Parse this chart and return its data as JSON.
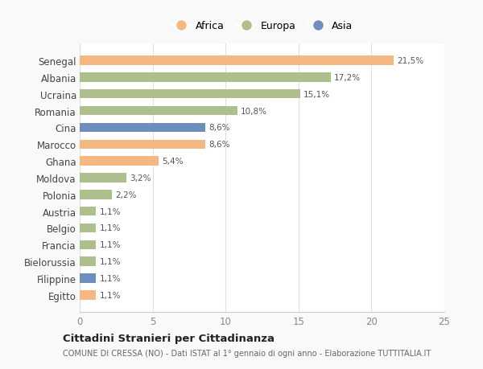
{
  "categories": [
    "Senegal",
    "Albania",
    "Ucraina",
    "Romania",
    "Cina",
    "Marocco",
    "Ghana",
    "Moldova",
    "Polonia",
    "Austria",
    "Belgio",
    "Francia",
    "Bielorussia",
    "Filippine",
    "Egitto"
  ],
  "values": [
    21.5,
    17.2,
    15.1,
    10.8,
    8.6,
    8.6,
    5.4,
    3.2,
    2.2,
    1.1,
    1.1,
    1.1,
    1.1,
    1.1,
    1.1
  ],
  "labels": [
    "21,5%",
    "17,2%",
    "15,1%",
    "10,8%",
    "8,6%",
    "8,6%",
    "5,4%",
    "3,2%",
    "2,2%",
    "1,1%",
    "1,1%",
    "1,1%",
    "1,1%",
    "1,1%",
    "1,1%"
  ],
  "colors": [
    "#F5B882",
    "#ADBF8C",
    "#ADBF8C",
    "#ADBF8C",
    "#6E8FBD",
    "#F5B882",
    "#F5B882",
    "#ADBF8C",
    "#ADBF8C",
    "#ADBF8C",
    "#ADBF8C",
    "#ADBF8C",
    "#ADBF8C",
    "#6E8FBD",
    "#F5B882"
  ],
  "continents": [
    "Africa",
    "Europa",
    "Asia"
  ],
  "legend_colors": [
    "#F5B882",
    "#ADBF8C",
    "#6E8FBD"
  ],
  "xlim": [
    0,
    25
  ],
  "xticks": [
    0,
    5,
    10,
    15,
    20,
    25
  ],
  "title": "Cittadini Stranieri per Cittadinanza",
  "subtitle": "COMUNE DI CRESSA (NO) - Dati ISTAT al 1° gennaio di ogni anno - Elaborazione TUTTITALIA.IT",
  "background_color": "#f9f9f9",
  "bar_background": "#ffffff"
}
